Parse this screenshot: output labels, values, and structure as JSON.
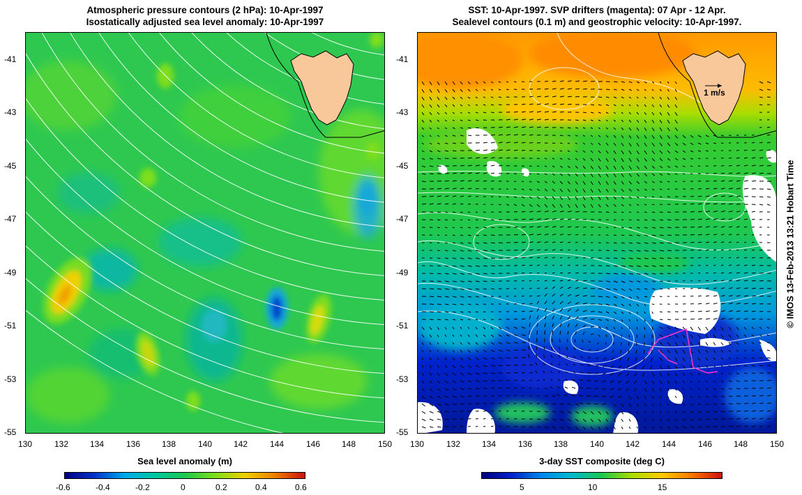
{
  "left_panel": {
    "title_line1": "Atmospheric pressure contours (2 hPa): 10-Apr-1997",
    "title_line2": "Isostatically adjusted sea level anomaly: 10-Apr-1997",
    "colorbar_title": "Sea level anomaly (m)",
    "colorbar_ticks": [
      "-0.6",
      "-0.4",
      "-0.2",
      "0",
      "0.2",
      "0.4",
      "0.6"
    ]
  },
  "right_panel": {
    "title_line1": "SST: 10-Apr-1997. SVP drifters (magenta): 07 Apr - 12 Apr.",
    "title_line2": "Sealevel contours (0.1 m) and geostrophic velocity: 10-Apr-1997.",
    "colorbar_title": "3-day SST composite (deg C)",
    "colorbar_ticks": [
      "5",
      "10",
      "15"
    ],
    "velocity_key": "1 m/s"
  },
  "axes": {
    "lat_ticks": [
      "-41",
      "-43",
      "-45",
      "-47",
      "-49",
      "-51",
      "-53",
      "-55"
    ],
    "lon_ticks": [
      "130",
      "132",
      "134",
      "136",
      "138",
      "140",
      "142",
      "144",
      "146",
      "148",
      "150"
    ]
  },
  "map_extent": {
    "lon": [
      130,
      150
    ],
    "lat": [
      -55,
      -40
    ]
  },
  "credit": "© IMOS 13-Feb-2013 13:21 Hobart Time",
  "colors": {
    "land": "#f9c89a",
    "contour": "#ffffff",
    "drifter": "#ff33cc",
    "ssh_colormap": [
      "#00007f",
      "#0033cc",
      "#00aaee",
      "#00c8a0",
      "#1ec850",
      "#7ede1e",
      "#f0d000",
      "#f08000",
      "#cc1010"
    ],
    "sst_colormap": [
      "#00007f",
      "#0022cc",
      "#0088ee",
      "#00bbcc",
      "#1ec850",
      "#aadd00",
      "#ffcc00",
      "#ff7700",
      "#cc1010"
    ]
  }
}
